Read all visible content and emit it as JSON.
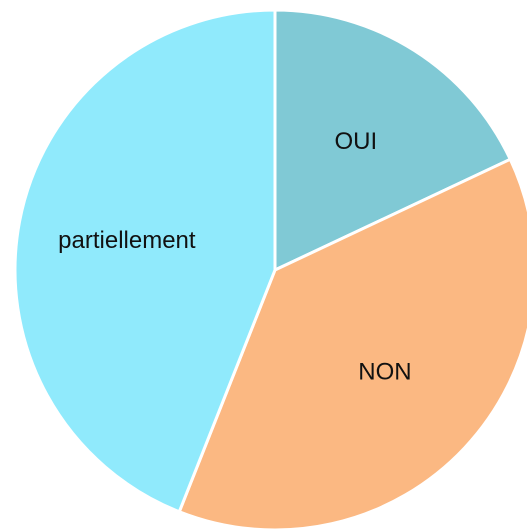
{
  "chart_data": {
    "type": "pie",
    "categories": [
      "OUI",
      "NON",
      "partiellement"
    ],
    "values": [
      18,
      38,
      44
    ],
    "colors": [
      "#80c9d5",
      "#fbb882",
      "#90eafc"
    ]
  }
}
